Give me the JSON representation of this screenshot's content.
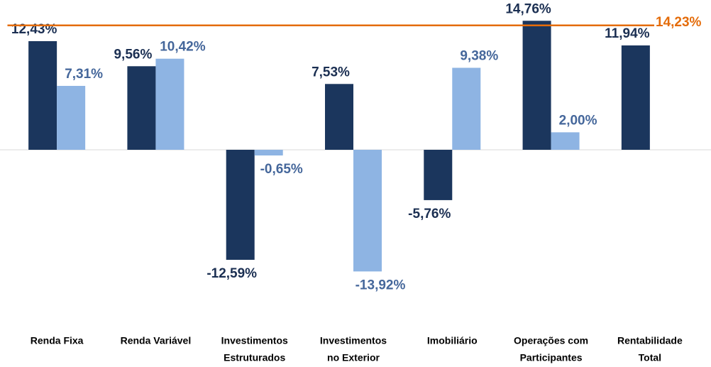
{
  "chart_data": {
    "type": "bar",
    "categories": [
      [
        "Renda Fixa"
      ],
      [
        "Renda Variável"
      ],
      [
        "Investimentos",
        "Estruturados"
      ],
      [
        "Investimentos",
        "no Exterior"
      ],
      [
        "Imobiliário"
      ],
      [
        "Operações com",
        "Participantes"
      ],
      [
        "Rentabilidade",
        "Total"
      ]
    ],
    "series": [
      {
        "color": "#1b365d",
        "label_color": "#1b2f52",
        "values": [
          12.43,
          9.56,
          -12.59,
          7.53,
          -5.76,
          14.76,
          11.94
        ],
        "value_labels": [
          "12,43%",
          "9,56%",
          "-12,59%",
          "7,53%",
          "-5,76%",
          "14,76%",
          "11,94%"
        ]
      },
      {
        "color": "#8eb4e3",
        "label_color": "#45679b",
        "values": [
          7.31,
          10.42,
          -0.65,
          -13.92,
          9.38,
          2.0,
          null
        ],
        "value_labels": [
          "7,31%",
          "10,42%",
          "-0,65%",
          "-13,92%",
          "9,38%",
          "2,00%",
          null
        ]
      }
    ],
    "reference_line": {
      "value": 14.23,
      "label": "14,23%",
      "color": "#e46c0a"
    },
    "ylim": [
      -16,
      16
    ]
  }
}
